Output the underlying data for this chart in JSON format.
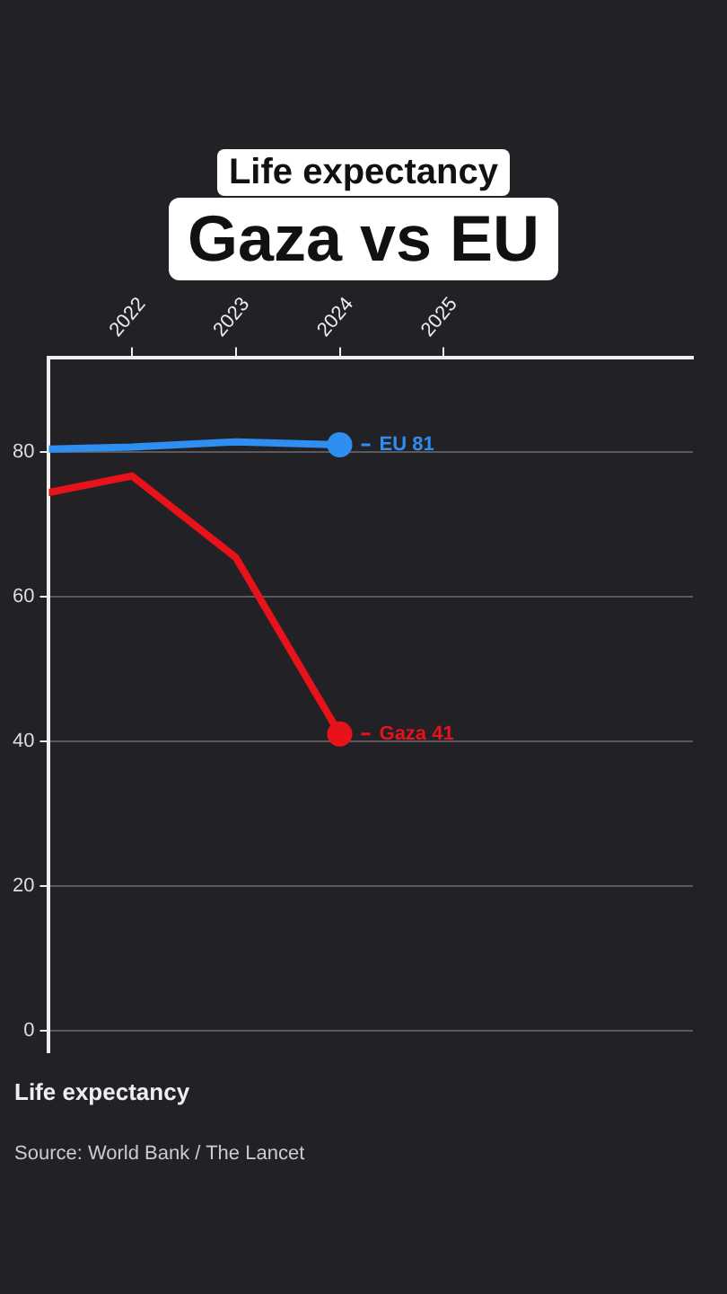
{
  "chart_data": {
    "type": "line",
    "title": "Life expectancy",
    "subtitle": "Gaza vs EU",
    "x": [
      2021.2,
      2022,
      2023,
      2024
    ],
    "series": [
      {
        "name": "EU",
        "color": "#2e8ff0",
        "values": [
          80.4,
          80.7,
          81.4,
          81
        ],
        "value_labels": [
          null,
          null,
          null,
          "81"
        ]
      },
      {
        "name": "Gaza",
        "color": "#e8121b",
        "values": [
          74.4,
          76.7,
          65.4,
          41
        ],
        "value_labels": [
          null,
          null,
          null,
          "41"
        ]
      }
    ],
    "xlim": [
      2021.2,
      2027.4
    ],
    "xticks": [
      2022,
      2023,
      2024,
      2025
    ],
    "ylim": [
      -3,
      93
    ],
    "yticks": [
      0,
      20,
      40,
      60,
      80
    ],
    "grid": "y",
    "legend": false,
    "line_style": "solid",
    "annotations": [
      "Life expectancy",
      "Source: World Bank / The Lancet"
    ]
  }
}
